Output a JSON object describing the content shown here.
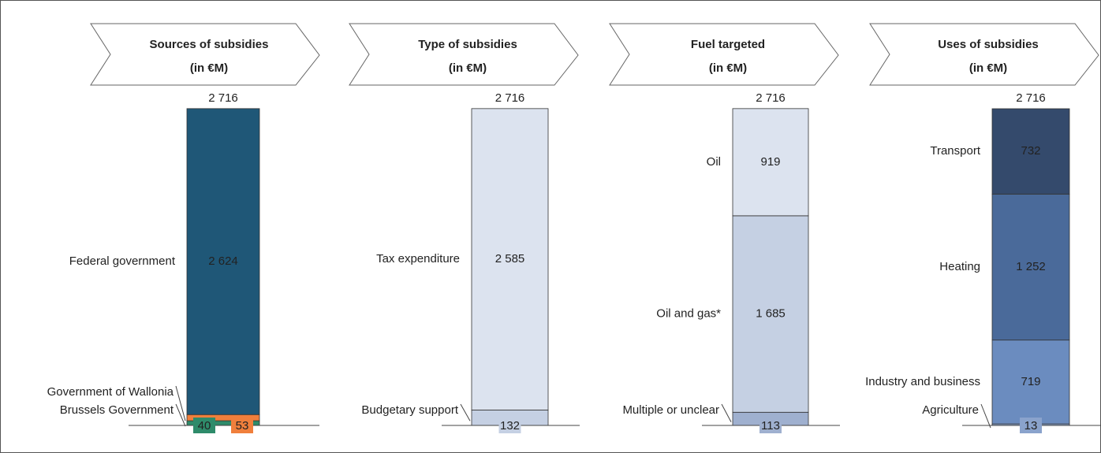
{
  "chart_data": [
    {
      "type": "bar",
      "title": "Sources of subsidies",
      "subtitle": "(in €M)",
      "total": 2716,
      "total_label": "2 716",
      "series": [
        {
          "name": "Brussels Government",
          "color": "#2e8b6a",
          "values": [
            40
          ]
        },
        {
          "name": "Government of Wallonia",
          "color": "#f07f3c",
          "values": [
            53
          ]
        },
        {
          "name": "Federal government",
          "color": "#1f5777",
          "values": [
            2624
          ],
          "value_labels": [
            "2 624"
          ]
        }
      ]
    },
    {
      "type": "bar",
      "title": "Type of subsidies",
      "subtitle": "(in €M)",
      "total": 2716,
      "total_label": "2 716",
      "series": [
        {
          "name": "Budgetary support",
          "color": "#c5d0e3",
          "values": [
            132
          ]
        },
        {
          "name": "Tax expenditure",
          "color": "#dce3ef",
          "values": [
            2585
          ],
          "value_labels": [
            "2 585"
          ]
        }
      ]
    },
    {
      "type": "bar",
      "title": "Fuel targeted",
      "subtitle": "(in €M)",
      "total": 2716,
      "total_label": "2 716",
      "series": [
        {
          "name": "Multiple or unclear",
          "color": "#9fb0cf",
          "values": [
            113
          ]
        },
        {
          "name": "Oil and gas*",
          "color": "#c5d0e3",
          "values": [
            1685
          ],
          "value_labels": [
            "1 685"
          ]
        },
        {
          "name": "Oil",
          "color": "#dce3ef",
          "values": [
            919
          ]
        }
      ]
    },
    {
      "type": "bar",
      "title": "Uses of subsidies",
      "subtitle": "(in €M)",
      "total": 2716,
      "total_label": "2 716",
      "series": [
        {
          "name": "Agriculture",
          "color": "#8aa3cc",
          "values": [
            13
          ]
        },
        {
          "name": "Industry and business",
          "color": "#6b8cbf",
          "values": [
            719
          ]
        },
        {
          "name": "Heating",
          "color": "#4a6a9a",
          "values": [
            1252
          ],
          "value_labels": [
            "1 252"
          ]
        },
        {
          "name": "Transport",
          "color": "#344a6c",
          "values": [
            732
          ]
        }
      ]
    }
  ]
}
